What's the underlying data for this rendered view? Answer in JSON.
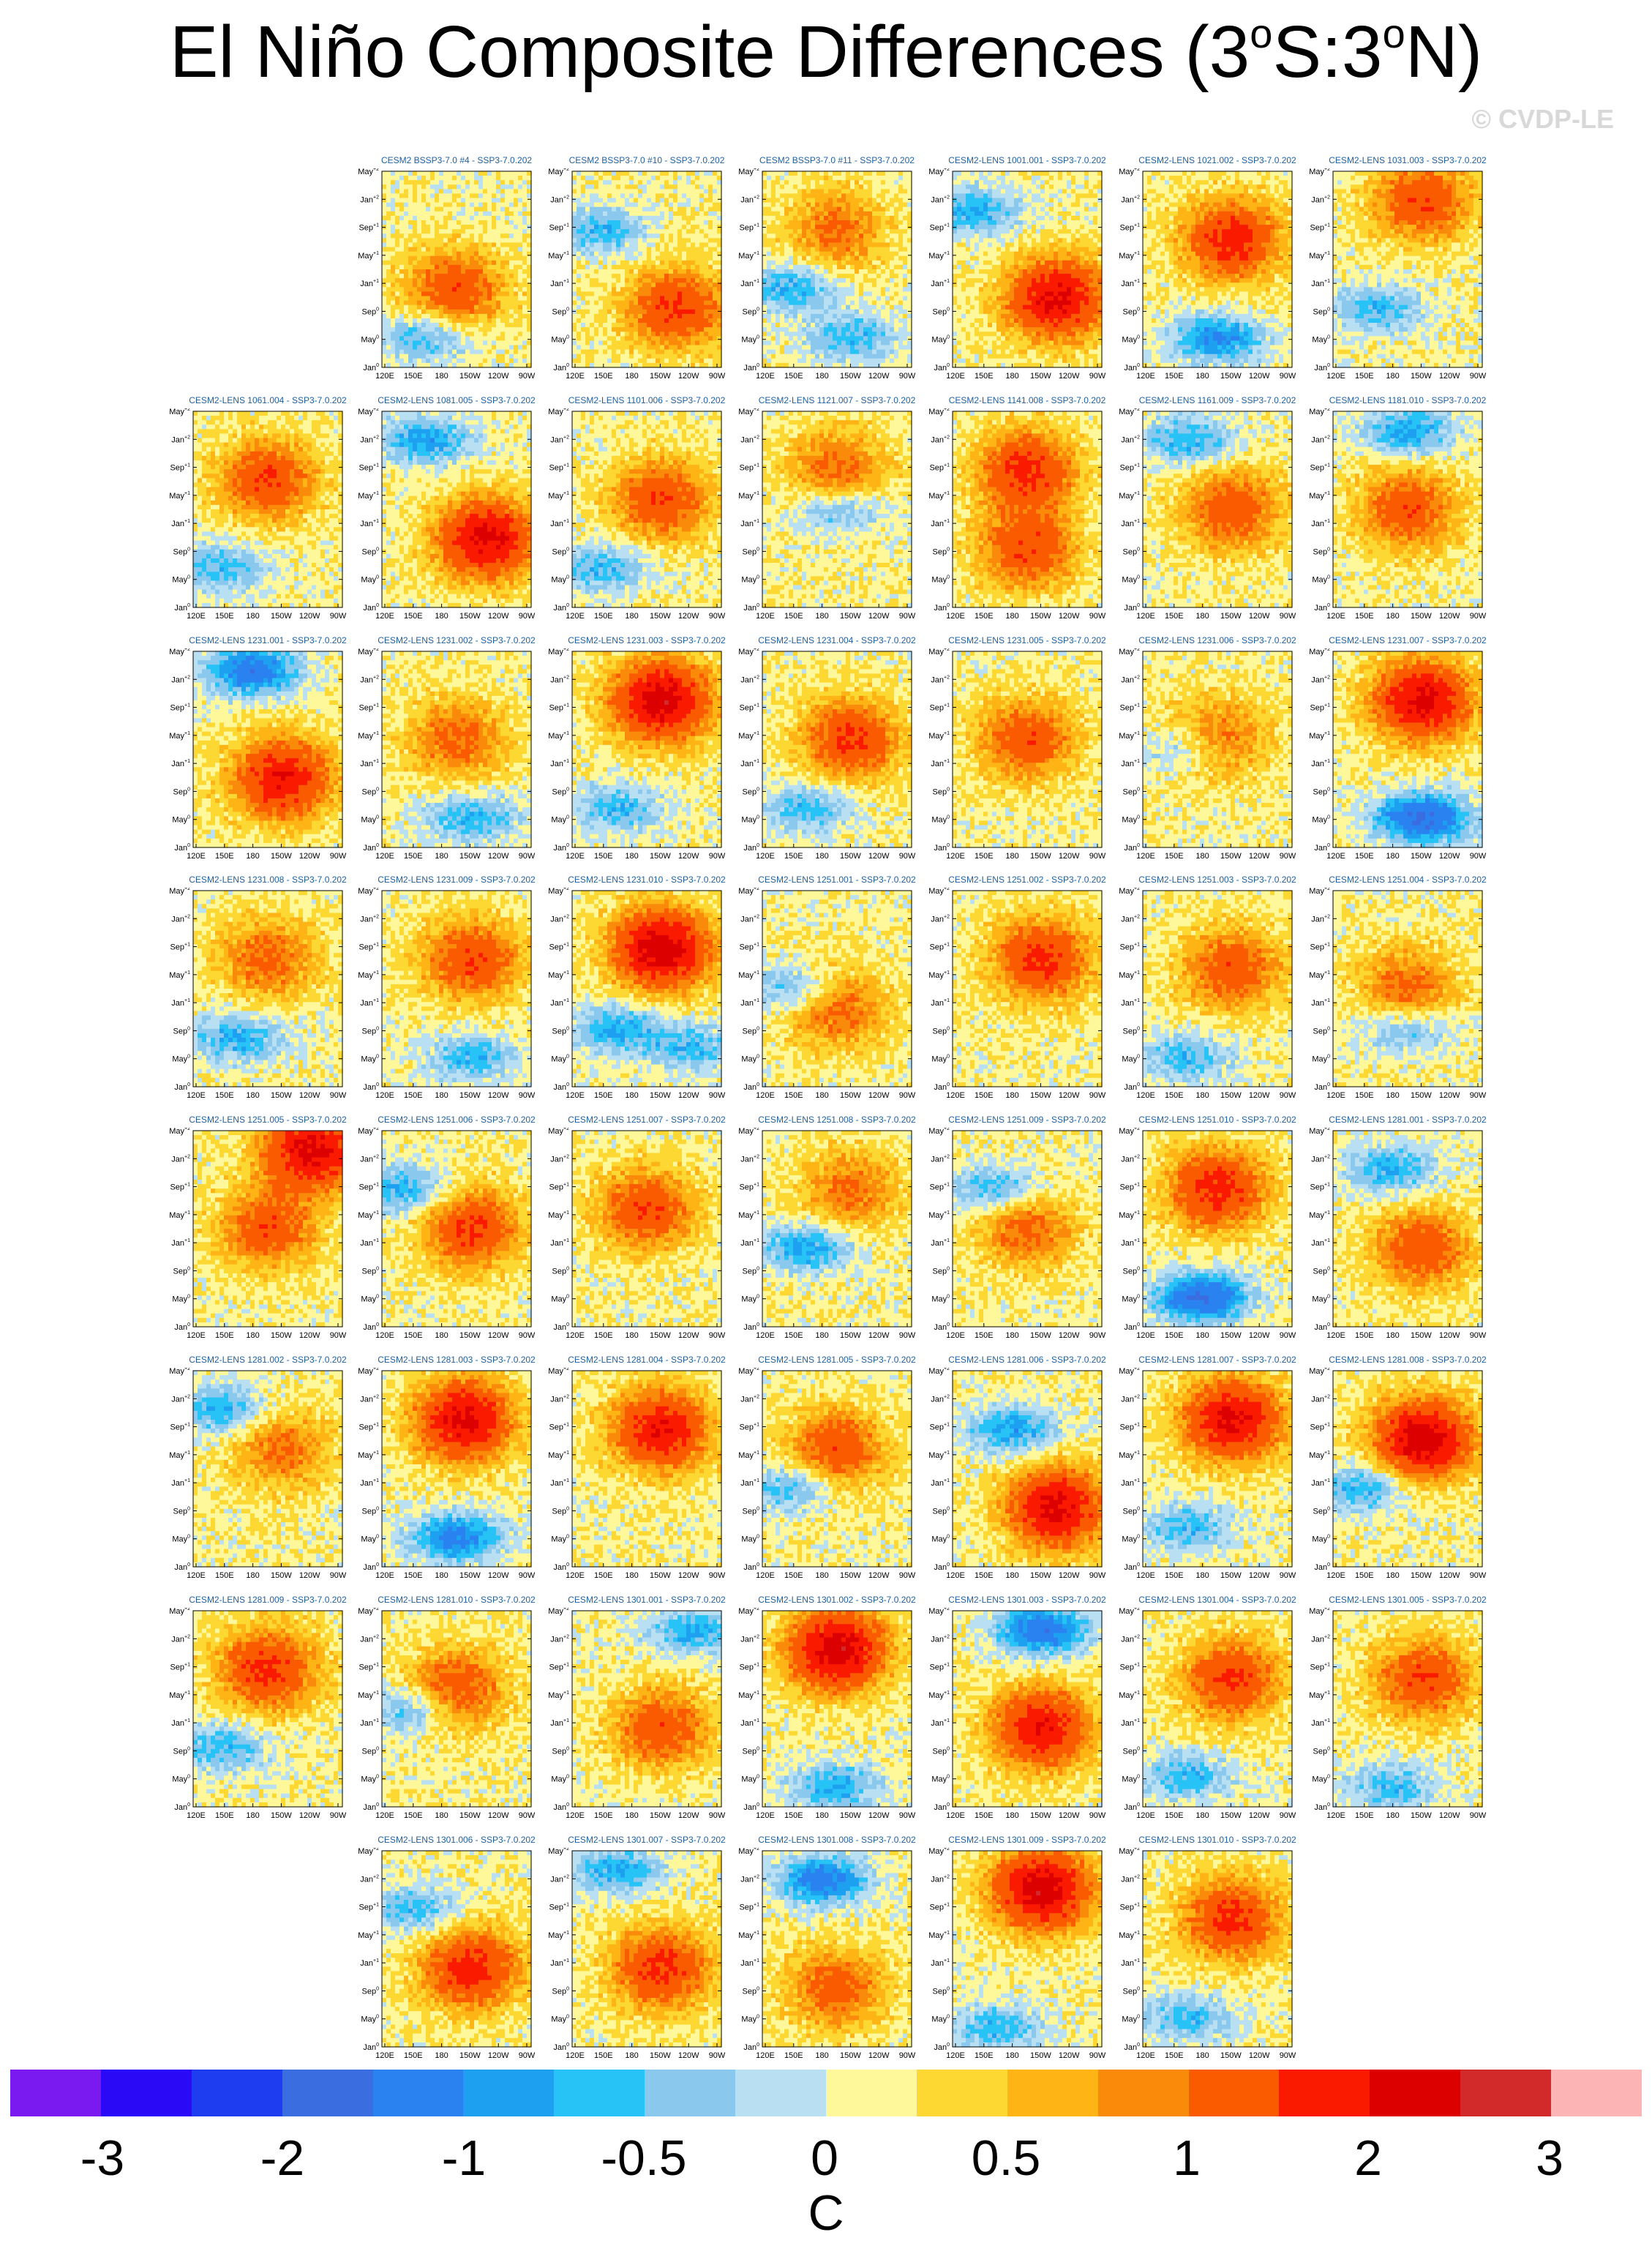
{
  "title": {
    "main": "El Niño Composite Differences (3",
    "deg1": "o",
    "mid": "S:3",
    "deg2": "o",
    "end": "N)"
  },
  "watermark": "© CVDP-LE",
  "y_tick_labels": [
    "May+2",
    "Jan+2",
    "Sep+1",
    "May+1",
    "Jan+1",
    "Sep0",
    "May0",
    "Jan0"
  ],
  "y_tick_display": [
    {
      "base": "May",
      "sup": "+2"
    },
    {
      "base": "Jan",
      "sup": "+2"
    },
    {
      "base": "Sep",
      "sup": "+1"
    },
    {
      "base": "May",
      "sup": "+1"
    },
    {
      "base": "Jan",
      "sup": "+1"
    },
    {
      "base": "Sep",
      "sup": "0"
    },
    {
      "base": "May",
      "sup": "0"
    },
    {
      "base": "Jan",
      "sup": "0"
    }
  ],
  "x_tick_labels": [
    "120E",
    "150E",
    "180",
    "150W",
    "120W",
    "90W"
  ],
  "colorbar": {
    "colors": [
      "#7a1af0",
      "#2a0af6",
      "#1e3cf0",
      "#3a6de0",
      "#2a82f0",
      "#1ea0f0",
      "#28c3f6",
      "#8ac8ee",
      "#b8e0f2",
      "#fef89a",
      "#fdd832",
      "#fdb414",
      "#fa8a0a",
      "#fa5a00",
      "#fa1a00",
      "#dc0000",
      "#d22a2a",
      "#fdb4b4"
    ],
    "labels": [
      "-3",
      "-2",
      "-1",
      "-0.5",
      "0",
      "0.5",
      "1",
      "2",
      "3"
    ],
    "units": "C"
  },
  "chart_data": {
    "type": "heatmap",
    "description_axes": {
      "x": "longitude 120E to 90W",
      "y": "months Jan0 to May+2"
    },
    "panels": [
      {
        "row": 0,
        "col": 1,
        "label": "CESM2 BSSP3-7.0 #4 - SSP3-7.0.202",
        "warm": [
          [
            0.5,
            0.6,
            1.2
          ]
        ],
        "cool": [
          [
            0.3,
            0.85,
            0.8
          ]
        ]
      },
      {
        "row": 0,
        "col": 2,
        "label": "CESM2 BSSP3-7.0 #10 - SSP3-7.0.202",
        "warm": [
          [
            0.7,
            0.7,
            1.4
          ]
        ],
        "cool": [
          [
            0.2,
            0.3,
            0.8
          ]
        ]
      },
      {
        "row": 0,
        "col": 3,
        "label": "CESM2 BSSP3-7.0 #11 - SSP3-7.0.202",
        "warm": [
          [
            0.5,
            0.3,
            0.9
          ]
        ],
        "cool": [
          [
            0.2,
            0.6,
            0.9
          ],
          [
            0.6,
            0.85,
            0.8
          ]
        ]
      },
      {
        "row": 0,
        "col": 4,
        "label": "CESM2-LENS 1001.001 - SSP3-7.0.202",
        "warm": [
          [
            0.7,
            0.65,
            2.0
          ]
        ],
        "cool": [
          [
            0.15,
            0.2,
            0.9
          ]
        ]
      },
      {
        "row": 0,
        "col": 5,
        "label": "CESM2-LENS 1021.002 - SSP3-7.0.202",
        "warm": [
          [
            0.6,
            0.35,
            1.6
          ]
        ],
        "cool": [
          [
            0.5,
            0.85,
            1.2
          ]
        ]
      },
      {
        "row": 0,
        "col": 6,
        "label": "CESM2-LENS 1031.003 - SSP3-7.0.202",
        "warm": [
          [
            0.6,
            0.15,
            1.3
          ]
        ],
        "cool": [
          [
            0.3,
            0.7,
            0.8
          ]
        ]
      },
      {
        "row": 1,
        "col": 0,
        "label": "CESM2-LENS 1061.004 - SSP3-7.0.202",
        "warm": [
          [
            0.5,
            0.35,
            1.3
          ]
        ],
        "cool": [
          [
            0.2,
            0.8,
            0.8
          ]
        ]
      },
      {
        "row": 1,
        "col": 1,
        "label": "CESM2-LENS 1081.005 - SSP3-7.0.202",
        "warm": [
          [
            0.7,
            0.65,
            2.0
          ]
        ],
        "cool": [
          [
            0.3,
            0.15,
            1.0
          ]
        ]
      },
      {
        "row": 1,
        "col": 2,
        "label": "CESM2-LENS 1101.006 - SSP3-7.0.202",
        "warm": [
          [
            0.6,
            0.45,
            1.3
          ]
        ],
        "cool": [
          [
            0.2,
            0.8,
            0.8
          ]
        ]
      },
      {
        "row": 1,
        "col": 3,
        "label": "CESM2-LENS 1121.007 - SSP3-7.0.202",
        "warm": [
          [
            0.5,
            0.3,
            1.0
          ]
        ],
        "cool": [
          [
            0.5,
            0.5,
            0.8
          ]
        ]
      },
      {
        "row": 1,
        "col": 4,
        "label": "CESM2-LENS 1141.008 - SSP3-7.0.202",
        "warm": [
          [
            0.5,
            0.3,
            1.5
          ],
          [
            0.5,
            0.7,
            1.3
          ]
        ],
        "cool": []
      },
      {
        "row": 1,
        "col": 5,
        "label": "CESM2-LENS 1161.009 - SSP3-7.0.202",
        "warm": [
          [
            0.6,
            0.5,
            1.2
          ]
        ],
        "cool": [
          [
            0.3,
            0.15,
            0.9
          ]
        ]
      },
      {
        "row": 1,
        "col": 6,
        "label": "CESM2-LENS 1181.010 - SSP3-7.0.202",
        "warm": [
          [
            0.5,
            0.5,
            1.2
          ]
        ],
        "cool": [
          [
            0.5,
            0.1,
            1.0
          ]
        ]
      },
      {
        "row": 2,
        "col": 0,
        "label": "CESM2-LENS 1231.001 - SSP3-7.0.202",
        "warm": [
          [
            0.6,
            0.65,
            1.8
          ]
        ],
        "cool": [
          [
            0.4,
            0.1,
            1.5
          ]
        ]
      },
      {
        "row": 2,
        "col": 1,
        "label": "CESM2-LENS 1231.002 - SSP3-7.0.202",
        "warm": [
          [
            0.5,
            0.45,
            1.0
          ]
        ],
        "cool": [
          [
            0.6,
            0.85,
            0.9
          ]
        ]
      },
      {
        "row": 2,
        "col": 2,
        "label": "CESM2-LENS 1231.003 - SSP3-7.0.202",
        "warm": [
          [
            0.6,
            0.25,
            2.2
          ]
        ],
        "cool": [
          [
            0.3,
            0.8,
            0.8
          ]
        ]
      },
      {
        "row": 2,
        "col": 3,
        "label": "CESM2-LENS 1231.004 - SSP3-7.0.202",
        "warm": [
          [
            0.6,
            0.45,
            1.4
          ]
        ],
        "cool": [
          [
            0.3,
            0.8,
            0.8
          ]
        ]
      },
      {
        "row": 2,
        "col": 4,
        "label": "CESM2-LENS 1231.005 - SSP3-7.0.202",
        "warm": [
          [
            0.5,
            0.45,
            1.2
          ]
        ],
        "cool": []
      },
      {
        "row": 2,
        "col": 5,
        "label": "CESM2-LENS 1231.006 - SSP3-7.0.202",
        "warm": [
          [
            0.5,
            0.45,
            1.0
          ]
        ],
        "cool": [
          [
            0.3,
            0.5,
            0.7
          ]
        ]
      },
      {
        "row": 2,
        "col": 6,
        "label": "CESM2-LENS 1231.007 - SSP3-7.0.202",
        "warm": [
          [
            0.6,
            0.25,
            2.0
          ]
        ],
        "cool": [
          [
            0.6,
            0.85,
            1.8
          ]
        ]
      },
      {
        "row": 3,
        "col": 0,
        "label": "CESM2-LENS 1231.008 - SSP3-7.0.202",
        "warm": [
          [
            0.5,
            0.35,
            1.0
          ]
        ],
        "cool": [
          [
            0.3,
            0.75,
            0.9
          ]
        ]
      },
      {
        "row": 3,
        "col": 1,
        "label": "CESM2-LENS 1231.009 - SSP3-7.0.202",
        "warm": [
          [
            0.6,
            0.35,
            1.3
          ]
        ],
        "cool": [
          [
            0.6,
            0.85,
            0.8
          ]
        ]
      },
      {
        "row": 3,
        "col": 2,
        "label": "CESM2-LENS 1231.010 - SSP3-7.0.202",
        "warm": [
          [
            0.6,
            0.3,
            2.2
          ]
        ],
        "cool": [
          [
            0.3,
            0.7,
            0.9
          ],
          [
            0.8,
            0.8,
            0.8
          ]
        ]
      },
      {
        "row": 3,
        "col": 3,
        "label": "CESM2-LENS 1251.001 - SSP3-7.0.202",
        "warm": [
          [
            0.5,
            0.6,
            1.0
          ]
        ],
        "cool": [
          [
            0.2,
            0.5,
            0.8
          ]
        ]
      },
      {
        "row": 3,
        "col": 4,
        "label": "CESM2-LENS 1251.002 - SSP3-7.0.202",
        "warm": [
          [
            0.6,
            0.35,
            1.5
          ]
        ],
        "cool": []
      },
      {
        "row": 3,
        "col": 5,
        "label": "CESM2-LENS 1251.003 - SSP3-7.0.202",
        "warm": [
          [
            0.6,
            0.4,
            1.2
          ]
        ],
        "cool": [
          [
            0.3,
            0.85,
            0.8
          ]
        ]
      },
      {
        "row": 3,
        "col": 6,
        "label": "CESM2-LENS 1251.004 - SSP3-7.0.202",
        "warm": [
          [
            0.5,
            0.5,
            1.0
          ]
        ],
        "cool": [
          [
            0.5,
            0.7,
            0.8
          ]
        ]
      },
      {
        "row": 4,
        "col": 0,
        "label": "CESM2-LENS 1251.005 - SSP3-7.0.202",
        "warm": [
          [
            0.8,
            0.1,
            2.0
          ],
          [
            0.5,
            0.5,
            1.2
          ]
        ],
        "cool": []
      },
      {
        "row": 4,
        "col": 1,
        "label": "CESM2-LENS 1251.006 - SSP3-7.0.202",
        "warm": [
          [
            0.6,
            0.5,
            1.4
          ]
        ],
        "cool": [
          [
            0.15,
            0.3,
            0.9
          ]
        ]
      },
      {
        "row": 4,
        "col": 2,
        "label": "CESM2-LENS 1251.007 - SSP3-7.0.202",
        "warm": [
          [
            0.5,
            0.4,
            1.3
          ]
        ],
        "cool": []
      },
      {
        "row": 4,
        "col": 3,
        "label": "CESM2-LENS 1251.008 - SSP3-7.0.202",
        "warm": [
          [
            0.6,
            0.3,
            0.9
          ]
        ],
        "cool": [
          [
            0.3,
            0.6,
            1.0
          ]
        ]
      },
      {
        "row": 4,
        "col": 4,
        "label": "CESM2-LENS 1251.009 - SSP3-7.0.202",
        "warm": [
          [
            0.5,
            0.5,
            1.0
          ]
        ],
        "cool": [
          [
            0.3,
            0.3,
            0.9
          ]
        ]
      },
      {
        "row": 4,
        "col": 5,
        "label": "CESM2-LENS 1251.010 - SSP3-7.0.202",
        "warm": [
          [
            0.5,
            0.3,
            1.6
          ]
        ],
        "cool": [
          [
            0.4,
            0.85,
            1.7
          ]
        ]
      },
      {
        "row": 4,
        "col": 6,
        "label": "CESM2-LENS 1281.001 - SSP3-7.0.202",
        "warm": [
          [
            0.6,
            0.6,
            1.2
          ]
        ],
        "cool": [
          [
            0.4,
            0.2,
            0.9
          ]
        ]
      },
      {
        "row": 5,
        "col": 0,
        "label": "CESM2-LENS 1281.002 - SSP3-7.0.202",
        "warm": [
          [
            0.6,
            0.4,
            0.9
          ]
        ],
        "cool": [
          [
            0.2,
            0.2,
            0.9
          ]
        ]
      },
      {
        "row": 5,
        "col": 1,
        "label": "CESM2-LENS 1281.003 - SSP3-7.0.202",
        "warm": [
          [
            0.55,
            0.25,
            2.0
          ]
        ],
        "cool": [
          [
            0.5,
            0.85,
            1.3
          ]
        ]
      },
      {
        "row": 5,
        "col": 2,
        "label": "CESM2-LENS 1281.004 - SSP3-7.0.202",
        "warm": [
          [
            0.6,
            0.3,
            1.8
          ]
        ],
        "cool": []
      },
      {
        "row": 5,
        "col": 3,
        "label": "CESM2-LENS 1281.005 - SSP3-7.0.202",
        "warm": [
          [
            0.5,
            0.4,
            1.2
          ]
        ],
        "cool": [
          [
            0.2,
            0.6,
            0.8
          ]
        ]
      },
      {
        "row": 5,
        "col": 4,
        "label": "CESM2-LENS 1281.006 - SSP3-7.0.202",
        "warm": [
          [
            0.7,
            0.7,
            2.0
          ]
        ],
        "cool": [
          [
            0.4,
            0.3,
            1.0
          ]
        ]
      },
      {
        "row": 5,
        "col": 5,
        "label": "CESM2-LENS 1281.007 - SSP3-7.0.202",
        "warm": [
          [
            0.6,
            0.25,
            2.0
          ]
        ],
        "cool": [
          [
            0.3,
            0.8,
            0.8
          ]
        ]
      },
      {
        "row": 5,
        "col": 6,
        "label": "CESM2-LENS 1281.008 - SSP3-7.0.202",
        "warm": [
          [
            0.6,
            0.35,
            2.2
          ]
        ],
        "cool": [
          [
            0.2,
            0.6,
            0.9
          ]
        ]
      },
      {
        "row": 6,
        "col": 0,
        "label": "CESM2-LENS 1281.009 - SSP3-7.0.202",
        "warm": [
          [
            0.5,
            0.3,
            1.5
          ]
        ],
        "cool": [
          [
            0.2,
            0.7,
            0.8
          ]
        ]
      },
      {
        "row": 6,
        "col": 1,
        "label": "CESM2-LENS 1281.010 - SSP3-7.0.202",
        "warm": [
          [
            0.5,
            0.4,
            1.2
          ]
        ],
        "cool": [
          [
            0.2,
            0.5,
            0.8
          ]
        ]
      },
      {
        "row": 6,
        "col": 2,
        "label": "CESM2-LENS 1301.001 - SSP3-7.0.202",
        "warm": [
          [
            0.6,
            0.6,
            1.2
          ]
        ],
        "cool": [
          [
            0.8,
            0.1,
            0.9
          ]
        ]
      },
      {
        "row": 6,
        "col": 3,
        "label": "CESM2-LENS 1301.002 - SSP3-7.0.202",
        "warm": [
          [
            0.5,
            0.2,
            2.2
          ]
        ],
        "cool": [
          [
            0.5,
            0.9,
            0.9
          ]
        ]
      },
      {
        "row": 6,
        "col": 4,
        "label": "CESM2-LENS 1301.003 - SSP3-7.0.202",
        "warm": [
          [
            0.6,
            0.6,
            1.8
          ]
        ],
        "cool": [
          [
            0.6,
            0.1,
            1.5
          ]
        ]
      },
      {
        "row": 6,
        "col": 5,
        "label": "CESM2-LENS 1301.004 - SSP3-7.0.202",
        "warm": [
          [
            0.6,
            0.35,
            1.4
          ]
        ],
        "cool": [
          [
            0.3,
            0.85,
            0.8
          ]
        ]
      },
      {
        "row": 6,
        "col": 6,
        "label": "CESM2-LENS 1301.005 - SSP3-7.0.202",
        "warm": [
          [
            0.6,
            0.35,
            1.3
          ]
        ],
        "cool": [
          [
            0.4,
            0.9,
            0.8
          ]
        ]
      },
      {
        "row": 7,
        "col": 1,
        "label": "CESM2-LENS 1301.006 - SSP3-7.0.202",
        "warm": [
          [
            0.6,
            0.6,
            1.6
          ]
        ],
        "cool": [
          [
            0.2,
            0.3,
            0.8
          ]
        ]
      },
      {
        "row": 7,
        "col": 2,
        "label": "CESM2-LENS 1301.007 - SSP3-7.0.202",
        "warm": [
          [
            0.6,
            0.6,
            1.5
          ]
        ],
        "cool": [
          [
            0.3,
            0.1,
            0.9
          ]
        ]
      },
      {
        "row": 7,
        "col": 3,
        "label": "CESM2-LENS 1301.008 - SSP3-7.0.202",
        "warm": [
          [
            0.5,
            0.7,
            1.1
          ]
        ],
        "cool": [
          [
            0.4,
            0.15,
            1.4
          ]
        ]
      },
      {
        "row": 7,
        "col": 4,
        "label": "CESM2-LENS 1301.009 - SSP3-7.0.202",
        "warm": [
          [
            0.6,
            0.2,
            2.2
          ]
        ],
        "cool": [
          [
            0.3,
            0.9,
            0.8
          ]
        ]
      },
      {
        "row": 7,
        "col": 5,
        "label": "CESM2-LENS 1301.010 - SSP3-7.0.202",
        "warm": [
          [
            0.6,
            0.35,
            1.5
          ]
        ],
        "cool": [
          [
            0.3,
            0.85,
            0.8
          ]
        ]
      }
    ]
  }
}
